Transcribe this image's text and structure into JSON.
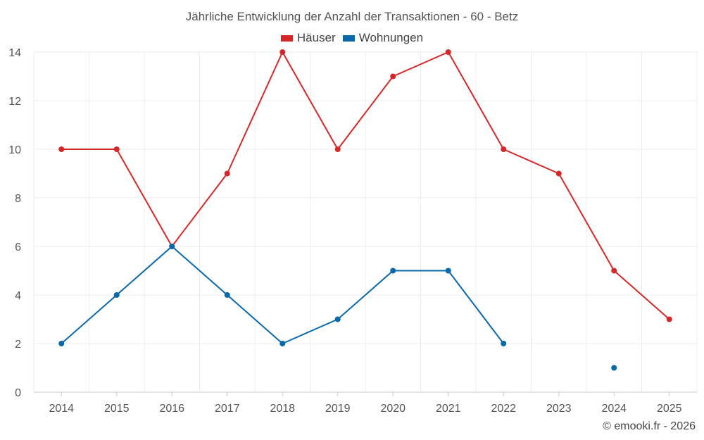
{
  "chart_data": {
    "type": "line",
    "title": "Jährliche Entwicklung der Anzahl der Transaktionen - 60 - Betz",
    "categories": [
      "2014",
      "2015",
      "2016",
      "2017",
      "2018",
      "2019",
      "2020",
      "2021",
      "2022",
      "2023",
      "2024",
      "2025"
    ],
    "series": [
      {
        "name": "Häuser",
        "color": "#d62728",
        "values": [
          10,
          10,
          6,
          9,
          14,
          10,
          13,
          14,
          10,
          9,
          5,
          3
        ]
      },
      {
        "name": "Wohnungen",
        "color": "#0868ac",
        "values": [
          2,
          4,
          6,
          4,
          2,
          3,
          5,
          5,
          2,
          null,
          1,
          null
        ]
      }
    ],
    "ylim": [
      0,
      14
    ],
    "yticks": [
      0,
      2,
      4,
      6,
      8,
      10,
      12,
      14
    ],
    "grid": true,
    "legend_position": "top-center",
    "xlabel": "",
    "ylabel": ""
  },
  "credits": "© emooki.fr - 2026"
}
